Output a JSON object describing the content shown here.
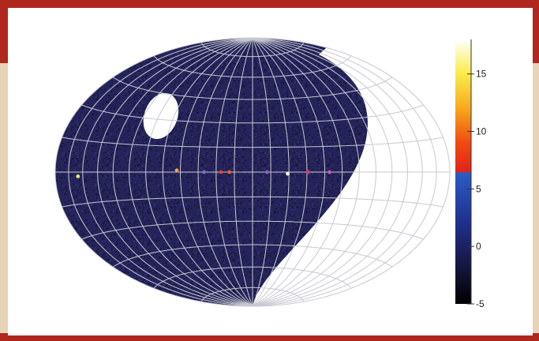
{
  "colors": {
    "frame_red": "#b0271e",
    "frame_tan": "#e8d3b8",
    "panel_white": "#ffffff",
    "sky_fill": "#25245a",
    "grid_line": "#c8c8d2",
    "excluded_region": "#ffffff"
  },
  "map": {
    "projection": "hammer-aitoff",
    "graticule": {
      "meridian_step_deg": 15,
      "parallel_step_deg": 15
    },
    "hot_spots": [
      {
        "lon_deg": 155,
        "lat_deg": -2,
        "level": 13,
        "color": "#f2e86a"
      },
      {
        "lon_deg": 63,
        "lat_deg": 1,
        "level": 11,
        "color": "#f5a43a"
      },
      {
        "lon_deg": 26,
        "lat_deg": 0,
        "level": 9,
        "color": "#e8402a"
      },
      {
        "lon_deg": 19,
        "lat_deg": 0,
        "level": 9,
        "color": "#ee5c30"
      },
      {
        "lon_deg": -29,
        "lat_deg": -1,
        "level": 15,
        "color": "#fffbe0"
      },
      {
        "lon_deg": -46,
        "lat_deg": 0,
        "level": 8,
        "color": "#d83c6a"
      },
      {
        "lon_deg": -64,
        "lat_deg": 0,
        "level": 7,
        "color": "#c85ab0"
      },
      {
        "lon_deg": -12,
        "lat_deg": 0,
        "level": 6,
        "color": "#8a60c0"
      },
      {
        "lon_deg": 40,
        "lat_deg": 0,
        "level": 6,
        "color": "#7a6cc8"
      }
    ]
  },
  "colorbar": {
    "min": -5,
    "max": 18,
    "ticks": [
      {
        "value": 15,
        "label": "15"
      },
      {
        "value": 10,
        "label": "10"
      },
      {
        "value": 5,
        "label": "5"
      },
      {
        "value": 0,
        "label": "0"
      },
      {
        "value": -5,
        "label": "-5"
      }
    ],
    "stops": [
      {
        "value": -5,
        "color": "#000000"
      },
      {
        "value": -2,
        "color": "#15143a"
      },
      {
        "value": 2,
        "color": "#1f2f8c"
      },
      {
        "value": 6.4,
        "color": "#2c5cc4"
      },
      {
        "value": 6.5,
        "color": "#e02418"
      },
      {
        "value": 9,
        "color": "#f04a10"
      },
      {
        "value": 12,
        "color": "#f7a81e"
      },
      {
        "value": 15,
        "color": "#f9ec48"
      },
      {
        "value": 18,
        "color": "#ffffff"
      }
    ]
  }
}
